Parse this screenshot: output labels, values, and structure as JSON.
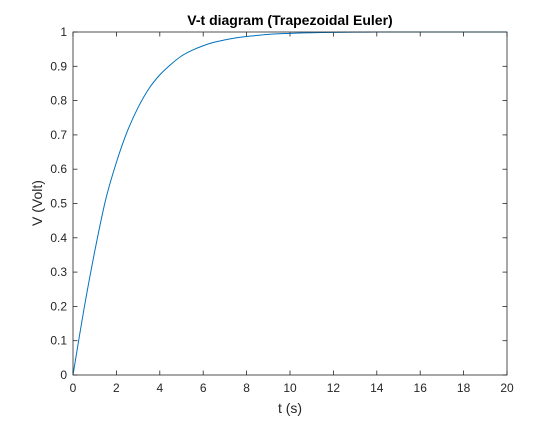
{
  "chart_data": {
    "type": "line",
    "title": "V-t diagram (Trapezoidal Euler)",
    "xlabel": "t (s)",
    "ylabel": "V (Volt)",
    "xlim": [
      0,
      20
    ],
    "ylim": [
      0,
      1
    ],
    "x_ticks": [
      "0",
      "2",
      "4",
      "6",
      "8",
      "10",
      "12",
      "14",
      "16",
      "18",
      "20"
    ],
    "y_ticks": [
      "0",
      "0.1",
      "0.2",
      "0.3",
      "0.4",
      "0.5",
      "0.6",
      "0.7",
      "0.8",
      "0.9",
      "1"
    ],
    "grid": false,
    "series": [
      {
        "color": "#0072bd",
        "x": [
          0,
          0.5,
          1,
          1.5,
          2,
          2.5,
          3,
          3.5,
          4,
          4.5,
          5,
          5.5,
          6,
          6.5,
          7,
          7.5,
          8,
          8.5,
          9,
          9.5,
          10,
          11,
          12,
          13,
          14,
          15,
          16,
          17,
          18,
          19,
          20
        ],
        "y": [
          0,
          0.19,
          0.36,
          0.51,
          0.62,
          0.71,
          0.78,
          0.835,
          0.875,
          0.905,
          0.93,
          0.947,
          0.96,
          0.97,
          0.977,
          0.983,
          0.987,
          0.99,
          0.993,
          0.995,
          0.996,
          0.998,
          0.999,
          0.9995,
          1,
          1,
          1,
          1,
          1,
          1,
          1
        ]
      }
    ]
  }
}
